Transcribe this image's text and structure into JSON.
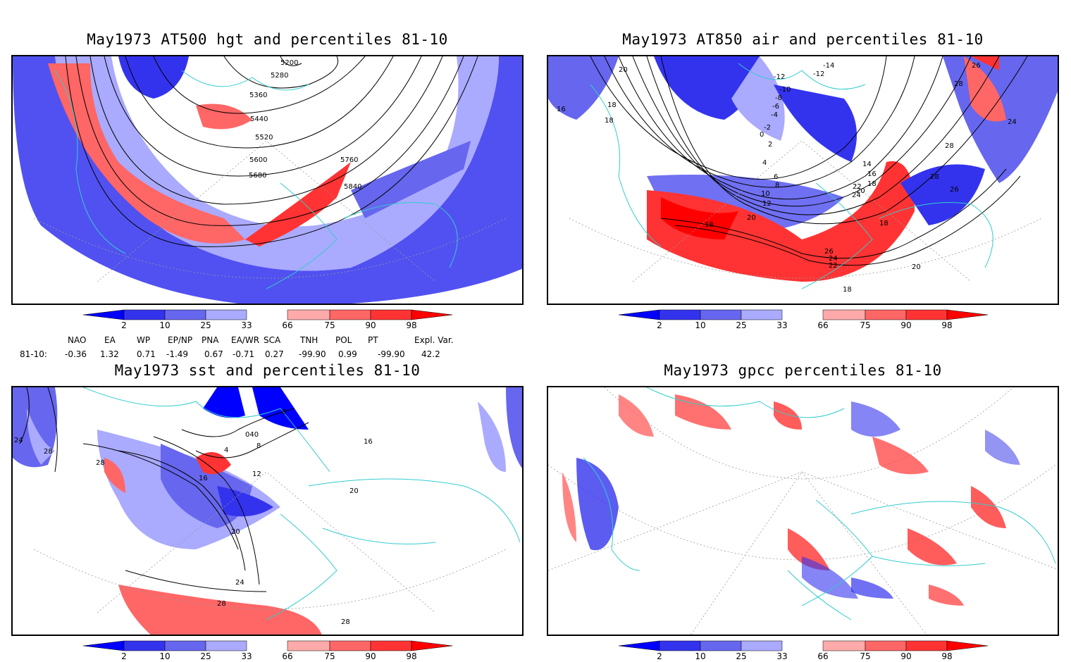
{
  "panels": [
    {
      "id": "p1",
      "title": "May1973 AT500 hgt and percentiles 81-10",
      "contour_labels": [
        "5200",
        "5280",
        "5360",
        "5440",
        "5520",
        "5600",
        "5680",
        "5760",
        "5840"
      ]
    },
    {
      "id": "p2",
      "title": "May1973 AT850 air and percentiles 81-10",
      "contour_labels": [
        "20",
        "16",
        "18",
        "18",
        "-14",
        "-12",
        "-12",
        "-10",
        "-8",
        "-6",
        "-4",
        "-2",
        "0",
        "2",
        "4",
        "6",
        "8",
        "10",
        "12",
        "14",
        "16",
        "18",
        "20",
        "22",
        "24",
        "26",
        "28",
        "28",
        "28",
        "26",
        "24",
        "18",
        "20",
        "18",
        "26",
        "24",
        "22",
        "20",
        "18"
      ]
    },
    {
      "id": "p3",
      "title": "May1973 sst and percentiles 81-10",
      "contour_labels": [
        "24",
        "28",
        "28",
        "16",
        "12",
        "8",
        "4",
        "0",
        "040",
        "20",
        "24",
        "28",
        "20",
        "16",
        "28"
      ]
    },
    {
      "id": "p4",
      "title": "May1973 gpcc percentiles 81-10",
      "contour_labels": []
    }
  ],
  "colorbar": {
    "ticks": [
      "2",
      "10",
      "25",
      "33",
      "66",
      "75",
      "90",
      "98"
    ],
    "colors": {
      "deep_blue": "#0000ff",
      "blue": "#3333ee",
      "mid_blue": "#6666ee",
      "light_blue": "#aaaaff",
      "light_red": "#ffaaaa",
      "mid_red": "#ff6666",
      "red": "#ff3333",
      "deep_red": "#ff0000"
    }
  },
  "indices": {
    "headers": [
      "NAO",
      "EA",
      "WP",
      "EP/NP",
      "PNA",
      "EA/WR",
      "SCA",
      "TNH",
      "POL",
      "PT",
      "Expl. Var."
    ],
    "row_label": "81-10:",
    "values": [
      "-0.36",
      "1.32",
      "0.71",
      "-1.49",
      "0.67",
      "-0.71",
      "0.27",
      "-99.90",
      "0.99",
      "-99.90",
      "42.2"
    ]
  },
  "map_colors": {
    "coast": "#33cccc",
    "contour": "#000000",
    "grid": "#999999"
  }
}
